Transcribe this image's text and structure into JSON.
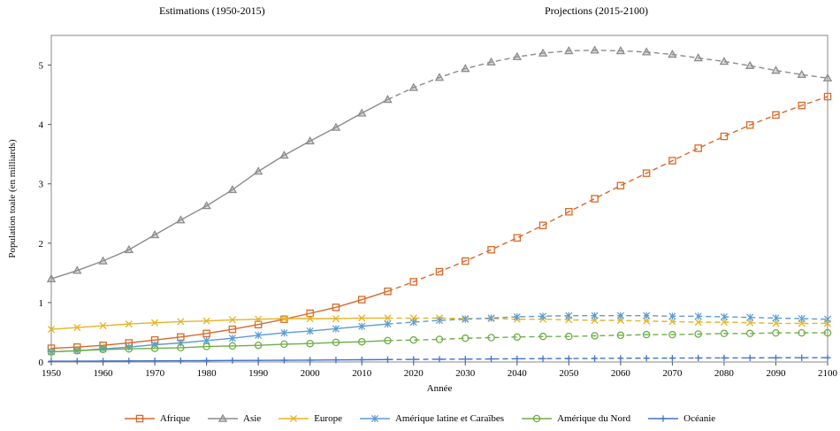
{
  "chart_data": {
    "type": "line",
    "title": "",
    "annotations": [
      {
        "text": "Estimations (1950-2015)"
      },
      {
        "text": "Projections (2015-2100)"
      }
    ],
    "xlabel": "Année",
    "ylabel": "Population toale (en milliards)",
    "xlim": [
      1950,
      2100
    ],
    "ylim": [
      0,
      5.5
    ],
    "x_ticks": [
      1950,
      1960,
      1970,
      1980,
      1990,
      2000,
      2010,
      2020,
      2030,
      2040,
      2050,
      2060,
      2070,
      2080,
      2090,
      2100
    ],
    "y_ticks": [
      0,
      1,
      2,
      3,
      4,
      5
    ],
    "x": [
      1950,
      1955,
      1960,
      1965,
      1970,
      1975,
      1980,
      1985,
      1990,
      1995,
      2000,
      2005,
      2010,
      2015,
      2020,
      2025,
      2030,
      2035,
      2040,
      2045,
      2050,
      2055,
      2060,
      2065,
      2070,
      2075,
      2080,
      2085,
      2090,
      2095,
      2100
    ],
    "split_year": 2015,
    "grid": false,
    "legend_position": "bottom",
    "series": [
      {
        "name": "Afrique",
        "color": "#D8692A",
        "marker": "square",
        "values": [
          0.23,
          0.25,
          0.28,
          0.32,
          0.37,
          0.42,
          0.48,
          0.55,
          0.63,
          0.72,
          0.82,
          0.92,
          1.05,
          1.19,
          1.35,
          1.52,
          1.7,
          1.89,
          2.09,
          2.3,
          2.53,
          2.75,
          2.97,
          3.18,
          3.39,
          3.6,
          3.8,
          3.99,
          4.16,
          4.32,
          4.47
        ]
      },
      {
        "name": "Asie",
        "color": "#8C8C8C",
        "marker": "triangle",
        "values": [
          1.4,
          1.54,
          1.7,
          1.89,
          2.14,
          2.39,
          2.63,
          2.9,
          3.21,
          3.48,
          3.72,
          3.95,
          4.19,
          4.42,
          4.62,
          4.79,
          4.94,
          5.05,
          5.14,
          5.2,
          5.24,
          5.25,
          5.24,
          5.22,
          5.18,
          5.12,
          5.06,
          4.99,
          4.91,
          4.84,
          4.78
        ]
      },
      {
        "name": "Europe",
        "color": "#E6B422",
        "marker": "x",
        "values": [
          0.55,
          0.58,
          0.61,
          0.64,
          0.66,
          0.68,
          0.69,
          0.71,
          0.72,
          0.73,
          0.73,
          0.73,
          0.74,
          0.74,
          0.74,
          0.74,
          0.73,
          0.73,
          0.72,
          0.72,
          0.71,
          0.7,
          0.7,
          0.69,
          0.68,
          0.67,
          0.67,
          0.66,
          0.65,
          0.65,
          0.65
        ]
      },
      {
        "name": "Amérique latine et Caraïbes",
        "color": "#5B9BD5",
        "marker": "asterisk",
        "values": [
          0.17,
          0.19,
          0.22,
          0.25,
          0.29,
          0.32,
          0.36,
          0.4,
          0.45,
          0.49,
          0.52,
          0.56,
          0.6,
          0.64,
          0.67,
          0.7,
          0.72,
          0.74,
          0.76,
          0.77,
          0.78,
          0.78,
          0.78,
          0.78,
          0.77,
          0.77,
          0.76,
          0.75,
          0.74,
          0.73,
          0.72
        ]
      },
      {
        "name": "Amérique du Nord",
        "color": "#70AD47",
        "marker": "circle",
        "values": [
          0.17,
          0.19,
          0.21,
          0.22,
          0.23,
          0.24,
          0.26,
          0.27,
          0.28,
          0.3,
          0.31,
          0.33,
          0.34,
          0.36,
          0.37,
          0.38,
          0.4,
          0.41,
          0.42,
          0.43,
          0.43,
          0.44,
          0.45,
          0.46,
          0.46,
          0.47,
          0.48,
          0.48,
          0.49,
          0.49,
          0.49
        ]
      },
      {
        "name": "Océanie",
        "color": "#4472C4",
        "marker": "plus",
        "values": [
          0.013,
          0.014,
          0.016,
          0.018,
          0.02,
          0.021,
          0.023,
          0.025,
          0.027,
          0.029,
          0.031,
          0.034,
          0.037,
          0.04,
          0.043,
          0.046,
          0.048,
          0.051,
          0.054,
          0.056,
          0.058,
          0.06,
          0.062,
          0.064,
          0.065,
          0.067,
          0.068,
          0.069,
          0.07,
          0.071,
          0.072
        ]
      }
    ]
  }
}
